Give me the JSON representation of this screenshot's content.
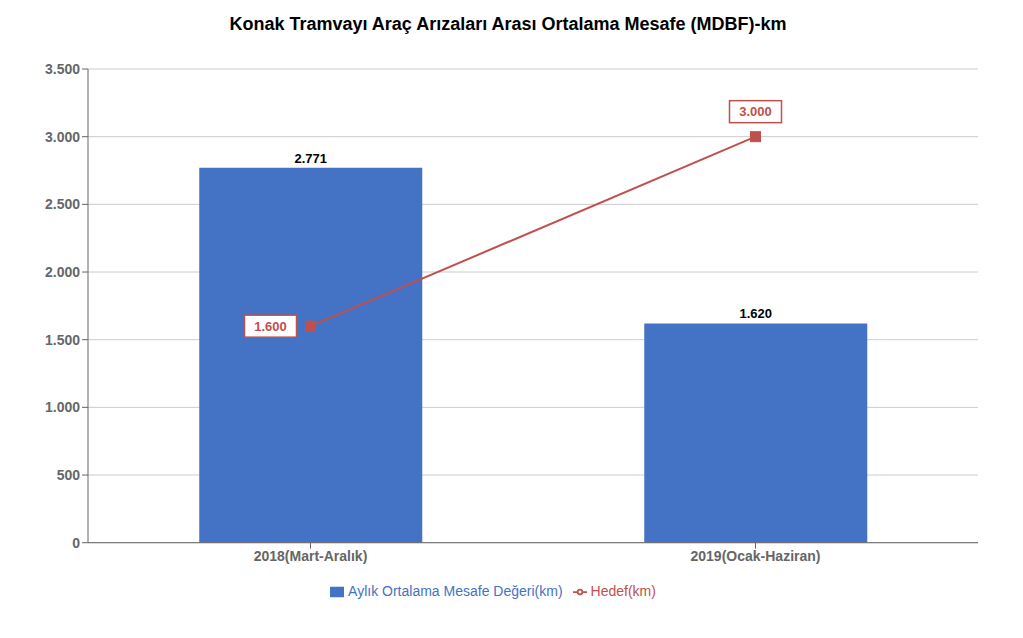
{
  "chart_data": {
    "type": "bar",
    "title": "Konak Tramvayı Araç Arızaları Arası Ortalama Mesafe (MDBF)-km",
    "categories": [
      "2018(Mart-Aralık)",
      "2019(Ocak-Haziran)"
    ],
    "series": [
      {
        "name": "Aylık Ortalama Mesafe Değeri(km)",
        "type": "bar",
        "color": "#4472C4",
        "values": [
          2771,
          1620
        ],
        "value_labels": [
          "2.771",
          "1.620"
        ]
      },
      {
        "name": "Hedef(km)",
        "type": "line",
        "color": "#C0504D",
        "marker": "square",
        "values": [
          1600,
          3000
        ],
        "value_labels": [
          "1.600",
          "3.000"
        ]
      }
    ],
    "data_labels": true,
    "ylim": [
      0,
      3500
    ],
    "yticks": [
      0,
      500,
      {
        "value": 1000,
        "label": "1.000"
      },
      {
        "value": 1500,
        "label": "1.500"
      },
      {
        "value": 2000,
        "label": "2.000"
      },
      {
        "value": 2500,
        "label": "2.500"
      },
      {
        "value": 3000,
        "label": "3.000"
      },
      {
        "value": 3500,
        "label": "3.500"
      }
    ],
    "grid": true,
    "legend": "bottom"
  }
}
